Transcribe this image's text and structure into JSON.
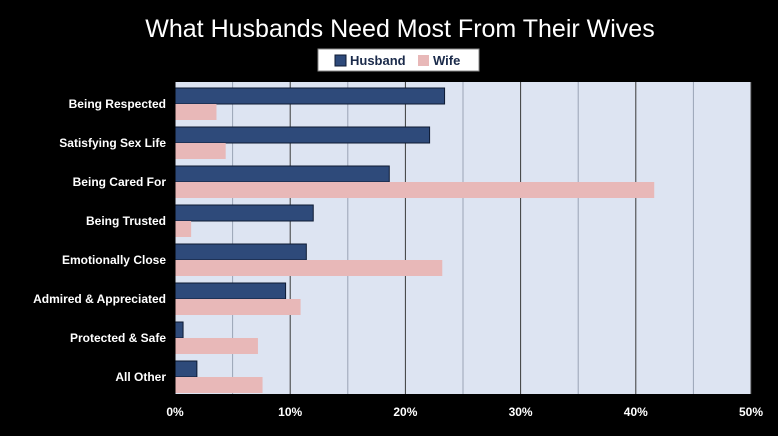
{
  "chart_data": {
    "type": "bar",
    "orientation": "horizontal",
    "title": "What Husbands Need Most From Their Wives",
    "categories": [
      "Being Respected",
      "Satisfying Sex Life",
      "Being Cared For",
      "Being Trusted",
      "Emotionally Close",
      "Admired & Appreciated",
      "Protected & Safe",
      "All Other"
    ],
    "series": [
      {
        "name": "Husband",
        "color": "#2e4a7a",
        "values": [
          23.4,
          22.1,
          18.6,
          12.0,
          11.4,
          9.6,
          0.7,
          1.9
        ]
      },
      {
        "name": "Wife",
        "color": "#e8b8b8",
        "values": [
          3.6,
          4.4,
          41.6,
          1.4,
          23.2,
          10.9,
          7.2,
          7.6
        ]
      }
    ],
    "xlim": [
      0,
      50
    ],
    "xticks": [
      0,
      10,
      20,
      30,
      40,
      50
    ],
    "xtick_labels": [
      "0%",
      "10%",
      "20%",
      "30%",
      "40%",
      "50%"
    ],
    "grid": true,
    "legend": "top-center",
    "plot_background": "#dde4f2"
  }
}
